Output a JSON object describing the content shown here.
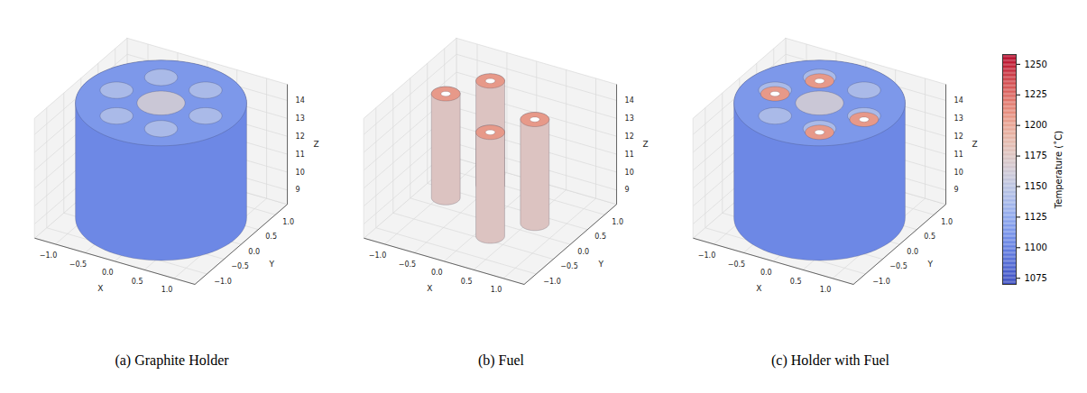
{
  "chart_data": {
    "type": "scatter3d",
    "panels": [
      {
        "caption": "(a) Graphite Holder",
        "holder": true,
        "fuel": false
      },
      {
        "caption": "(b) Fuel",
        "holder": false,
        "fuel": true
      },
      {
        "caption": "(c) Holder with Fuel",
        "holder": true,
        "fuel": true
      }
    ],
    "x_label": "X",
    "y_label": "Y",
    "z_label": "Z",
    "xlim": [
      -1.35,
      1.35
    ],
    "ylim": [
      -1.35,
      1.35
    ],
    "zlim": [
      8.2,
      14.9
    ],
    "xticks": [
      {
        "value": -1,
        "label": "−1.0"
      },
      {
        "value": -0.5,
        "label": "−0.5"
      },
      {
        "value": 0,
        "label": "0.0"
      },
      {
        "value": 0.5,
        "label": "0.5"
      },
      {
        "value": 1,
        "label": "1.0"
      }
    ],
    "yticks": [
      {
        "value": -1,
        "label": "−1.0"
      },
      {
        "value": -0.5,
        "label": "−0.5"
      },
      {
        "value": 0,
        "label": "0.0"
      },
      {
        "value": 0.5,
        "label": "0.5"
      },
      {
        "value": 1,
        "label": "1.0"
      }
    ],
    "zticks": [
      9,
      10,
      11,
      12,
      13,
      14
    ],
    "holder": {
      "radius": 1.25,
      "z": [
        8.4,
        14.8
      ],
      "side_temperature": 1105,
      "top_temperature": 1115,
      "center_radius": 0.35,
      "center_temperature": 1160,
      "hole_radius": 0.24,
      "hole_temperature": 1140,
      "holes": [
        [
          0.75,
          0
        ],
        [
          0.375,
          0.65
        ],
        [
          -0.375,
          0.65
        ],
        [
          -0.75,
          0
        ],
        [
          -0.375,
          -0.65
        ],
        [
          0.375,
          -0.65
        ]
      ]
    },
    "fuel": {
      "radius": 0.21,
      "inner_radius": 0.07,
      "z": [
        8.8,
        14.6
      ],
      "side_temperature": 1175,
      "top_temperature": 1205,
      "positions": [
        [
          -0.375,
          0.65
        ],
        [
          -0.75,
          0
        ],
        [
          0.75,
          0
        ],
        [
          0.375,
          -0.65
        ]
      ]
    },
    "colorbar": {
      "label": "Temperature (˚C)",
      "lim": [
        1070,
        1258
      ],
      "ticks": [
        1075,
        1100,
        1125,
        1150,
        1175,
        1200,
        1225,
        1250
      ]
    }
  }
}
